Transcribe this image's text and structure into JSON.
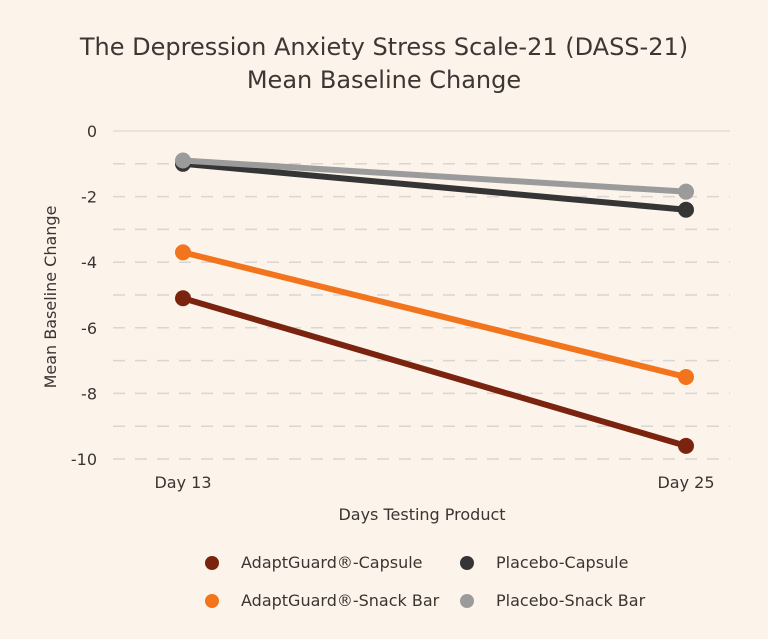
{
  "chart_data": {
    "type": "line",
    "title": "The Depression Anxiety Stress Scale-21 (DASS-21)",
    "subtitle": "Mean Baseline Change",
    "xlabel": "Days Testing Product",
    "ylabel": "Mean Baseline Change",
    "categories": [
      "Day 13",
      "Day 25"
    ],
    "ylim": [
      -10,
      0
    ],
    "yticks": [
      0,
      -2,
      -4,
      -6,
      -8,
      -10
    ],
    "ytick_labels": [
      "0",
      "-2",
      "-4",
      "-6",
      "-8",
      "-10"
    ],
    "grid": "horizontal dashed every 1 unit",
    "legend_position": "bottom",
    "series": [
      {
        "name": "AdaptGuard®-Capsule",
        "color": "#7a2410",
        "values": [
          -5.1,
          -9.6
        ]
      },
      {
        "name": "AdaptGuard®-Snack Bar",
        "color": "#f2741d",
        "values": [
          -3.7,
          -7.5
        ]
      },
      {
        "name": "Placebo-Capsule",
        "color": "#353535",
        "values": [
          -1.0,
          -2.4
        ]
      },
      {
        "name": "Placebo-Snack Bar",
        "color": "#9b9b9b",
        "values": [
          -0.9,
          -1.85
        ]
      }
    ]
  }
}
